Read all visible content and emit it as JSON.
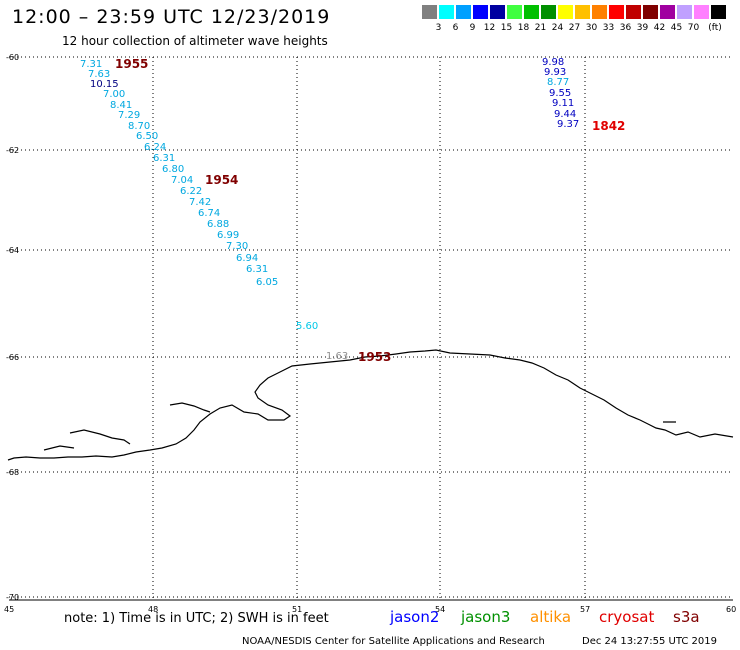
{
  "title": "12:00 – 23:59 UTC 12/23/2019",
  "subtitle": "12 hour collection of altimeter wave heights",
  "legend": {
    "unit": "(ft)",
    "items": [
      {
        "color": "#808080",
        "label": ""
      },
      {
        "color": "#00ffff",
        "label": "3"
      },
      {
        "color": "#00a0ff",
        "label": "6"
      },
      {
        "color": "#0000ff",
        "label": "9"
      },
      {
        "color": "#0000a0",
        "label": "12"
      },
      {
        "color": "#40ff40",
        "label": "15"
      },
      {
        "color": "#00c000",
        "label": "18"
      },
      {
        "color": "#009000",
        "label": "21"
      },
      {
        "color": "#ffff00",
        "label": "24"
      },
      {
        "color": "#ffc000",
        "label": "27"
      },
      {
        "color": "#ff8000",
        "label": "30"
      },
      {
        "color": "#ff0000",
        "label": "33"
      },
      {
        "color": "#c00000",
        "label": "36"
      },
      {
        "color": "#800000",
        "label": "39"
      },
      {
        "color": "#a000a0",
        "label": "42"
      },
      {
        "color": "#c0a0ff",
        "label": "45"
      },
      {
        "color": "#ff80ff",
        "label": "70"
      },
      {
        "color": "#000000",
        "label": ""
      }
    ]
  },
  "lat_labels": [
    "-60",
    "-62",
    "-64",
    "-66",
    "-68",
    "-70"
  ],
  "lon_labels": [
    "45",
    "48",
    "51",
    "54",
    "57",
    "60"
  ],
  "colors": {
    "swh_light": "#00a8e0",
    "swh_dark": "#0000c0",
    "swh_navy": "#000080",
    "swh_cyan": "#00c8e8",
    "swh_gray": "#909090",
    "pass_dark": "#800000",
    "pass_red": "#e00000"
  },
  "passes": [
    {
      "label": "1955",
      "color": "#800000"
    },
    {
      "label": "1954",
      "color": "#800000"
    },
    {
      "label": "1953",
      "color": "#800000"
    },
    {
      "label": "1842",
      "color": "#e00000"
    }
  ],
  "track_1955": [
    "7.31",
    "7.63",
    "10.15",
    "7.00",
    "8.41",
    "7.29",
    "8.70",
    "6.50",
    "6.24",
    "6.31",
    "6.80",
    "7.04",
    "6.22",
    "7.42",
    "6.74",
    "6.88",
    "6.99",
    "7.30",
    "6.94",
    "6.31",
    "6.05"
  ],
  "track_1953": [
    "5.60",
    "1.63"
  ],
  "track_1842": [
    "9.98",
    "9.93",
    "8.77",
    "9.55",
    "9.11",
    "9.44",
    "9.37"
  ],
  "footer": {
    "note": "note: 1) Time is in UTC; 2) SWH is in feet",
    "satellites": [
      {
        "name": "jason2",
        "color": "#0000ff"
      },
      {
        "name": "jason3",
        "color": "#009000"
      },
      {
        "name": "altika",
        "color": "#ff9000"
      },
      {
        "name": "cryosat",
        "color": "#e00000"
      },
      {
        "name": "s3a",
        "color": "#800000"
      }
    ],
    "credit": "NOAA/NESDIS Center for Satellite Applications and Research",
    "timestamp": "Dec 24 13:27:55 UTC 2019"
  }
}
